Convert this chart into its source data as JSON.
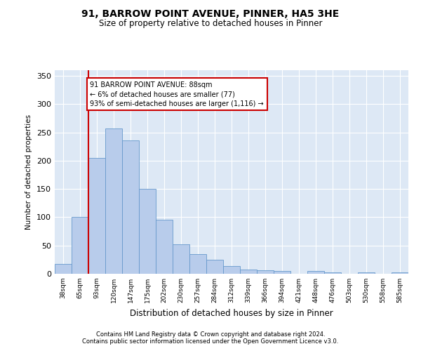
{
  "title1": "91, BARROW POINT AVENUE, PINNER, HA5 3HE",
  "title2": "Size of property relative to detached houses in Pinner",
  "xlabel": "Distribution of detached houses by size in Pinner",
  "ylabel": "Number of detached properties",
  "footer1": "Contains HM Land Registry data © Crown copyright and database right 2024.",
  "footer2": "Contains public sector information licensed under the Open Government Licence v3.0.",
  "bar_labels": [
    "38sqm",
    "65sqm",
    "93sqm",
    "120sqm",
    "147sqm",
    "175sqm",
    "202sqm",
    "230sqm",
    "257sqm",
    "284sqm",
    "312sqm",
    "339sqm",
    "366sqm",
    "394sqm",
    "421sqm",
    "448sqm",
    "476sqm",
    "503sqm",
    "530sqm",
    "558sqm",
    "585sqm"
  ],
  "bar_values": [
    18,
    100,
    205,
    257,
    236,
    150,
    96,
    52,
    35,
    25,
    14,
    8,
    6,
    5,
    0,
    5,
    3,
    0,
    3,
    0,
    3
  ],
  "bar_color": "#b8cceb",
  "bar_edge_color": "#6699cc",
  "background_color": "#dde8f5",
  "grid_color": "#ffffff",
  "annotation_text": "91 BARROW POINT AVENUE: 88sqm\n← 6% of detached houses are smaller (77)\n93% of semi-detached houses are larger (1,116) →",
  "annotation_box_color": "#ffffff",
  "annotation_border_color": "#cc0000",
  "vline_color": "#cc0000",
  "ylim": [
    0,
    360
  ],
  "yticks": [
    0,
    50,
    100,
    150,
    200,
    250,
    300,
    350
  ]
}
